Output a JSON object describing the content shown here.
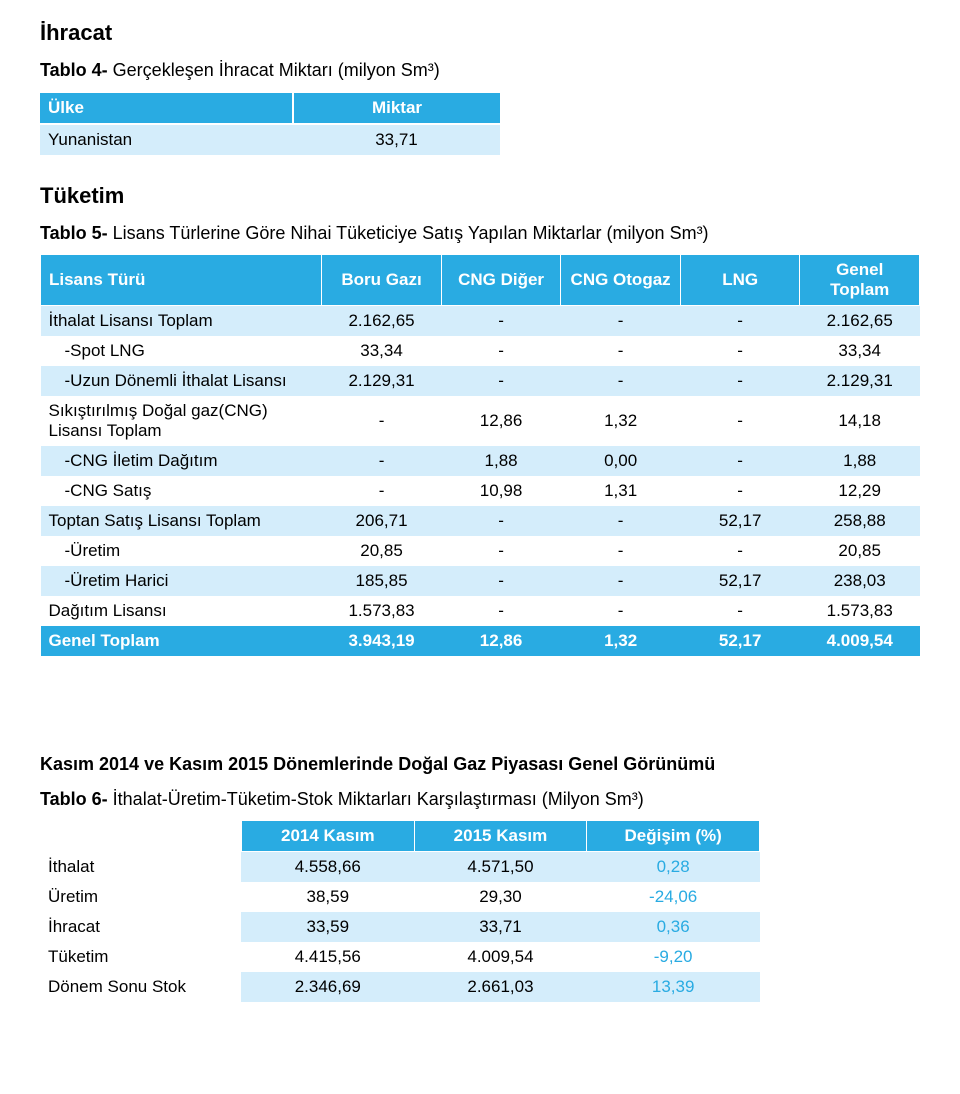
{
  "section1": {
    "title": "İhracat"
  },
  "table4": {
    "caption_bold": "Tablo 4-",
    "caption_rest": " Gerçekleşen İhracat Miktarı (milyon Sm³)",
    "headers": {
      "c0": "Ülke",
      "c1": "Miktar"
    },
    "rows": [
      {
        "c0": "Yunanistan",
        "c1": "33,71"
      }
    ]
  },
  "section2": {
    "title": "Tüketim"
  },
  "table5": {
    "caption_bold": "Tablo 5-",
    "caption_rest": " Lisans Türlerine Göre Nihai Tüketiciye Satış Yapılan Miktarlar (milyon Sm³)",
    "headers": {
      "c0": "Lisans Türü",
      "c1": "Boru Gazı",
      "c2": "CNG Diğer",
      "c3": "CNG Otogaz",
      "c4": "LNG",
      "c5": "Genel Toplam"
    },
    "rows": [
      {
        "indent": 0,
        "c0": "İthalat Lisansı Toplam",
        "c1": "2.162,65",
        "c2": "-",
        "c3": "-",
        "c4": "-",
        "c5": "2.162,65"
      },
      {
        "indent": 1,
        "c0": "-Spot LNG",
        "c1": "33,34",
        "c2": "-",
        "c3": "-",
        "c4": "-",
        "c5": "33,34"
      },
      {
        "indent": 1,
        "c0": "-Uzun Dönemli İthalat Lisansı",
        "c1": "2.129,31",
        "c2": "-",
        "c3": "-",
        "c4": "-",
        "c5": "2.129,31"
      },
      {
        "indent": 0,
        "c0": "Sıkıştırılmış Doğal gaz(CNG) Lisansı Toplam",
        "c1": "-",
        "c2": "12,86",
        "c3": "1,32",
        "c4": "-",
        "c5": "14,18"
      },
      {
        "indent": 1,
        "c0": "-CNG İletim Dağıtım",
        "c1": "-",
        "c2": "1,88",
        "c3": "0,00",
        "c4": "-",
        "c5": "1,88"
      },
      {
        "indent": 1,
        "c0": "-CNG Satış",
        "c1": "-",
        "c2": "10,98",
        "c3": "1,31",
        "c4": "-",
        "c5": "12,29"
      },
      {
        "indent": 0,
        "c0": "Toptan Satış Lisansı Toplam",
        "c1": "206,71",
        "c2": "-",
        "c3": "-",
        "c4": "52,17",
        "c5": "258,88"
      },
      {
        "indent": 1,
        "c0": "-Üretim",
        "c1": "20,85",
        "c2": "-",
        "c3": "-",
        "c4": "-",
        "c5": "20,85"
      },
      {
        "indent": 1,
        "c0": "-Üretim Harici",
        "c1": "185,85",
        "c2": "-",
        "c3": "-",
        "c4": "52,17",
        "c5": "238,03"
      },
      {
        "indent": 0,
        "c0": "Dağıtım Lisansı",
        "c1": "1.573,83",
        "c2": "-",
        "c3": "-",
        "c4": "-",
        "c5": "1.573,83"
      }
    ],
    "footer": {
      "c0": "Genel Toplam",
      "c1": "3.943,19",
      "c2": "12,86",
      "c3": "1,32",
      "c4": "52,17",
      "c5": "4.009,54"
    }
  },
  "section3": {
    "title": "Kasım 2014 ve Kasım 2015 Dönemlerinde Doğal Gaz Piyasası Genel Görünümü"
  },
  "table6": {
    "caption_bold": "Tablo 6-",
    "caption_rest": " İthalat-Üretim-Tüketim-Stok Miktarları Karşılaştırması (Milyon Sm³)",
    "headers": {
      "c1": "2014 Kasım",
      "c2": "2015 Kasım",
      "c3": "Değişim (%)"
    },
    "rows": [
      {
        "c0": "İthalat",
        "c1": "4.558,66",
        "c2": "4.571,50",
        "c3": "0,28"
      },
      {
        "c0": "Üretim",
        "c1": "38,59",
        "c2": "29,30",
        "c3": "-24,06"
      },
      {
        "c0": "İhracat",
        "c1": "33,59",
        "c2": "33,71",
        "c3": "0,36"
      },
      {
        "c0": "Tüketim",
        "c1": "4.415,56",
        "c2": "4.009,54",
        "c3": "-9,20"
      },
      {
        "c0": "Dönem Sonu Stok",
        "c1": "2.346,69",
        "c2": "2.661,03",
        "c3": "13,39"
      }
    ],
    "colors": {
      "change": "#29abe2"
    }
  }
}
